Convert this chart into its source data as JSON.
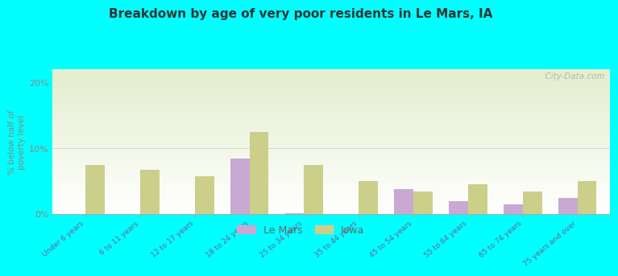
{
  "title": "Breakdown by age of very poor residents in Le Mars, IA",
  "categories": [
    "Under 6 years",
    "6 to 11 years",
    "12 to 17 years",
    "18 to 24 years",
    "25 to 34 years",
    "35 to 44 years",
    "45 to 54 years",
    "55 to 64 years",
    "65 to 74 years",
    "75 years and over"
  ],
  "le_mars_values": [
    0,
    0,
    0,
    8.5,
    0.2,
    0,
    3.8,
    2.0,
    1.5,
    2.5
  ],
  "iowa_values_aligned": [
    7.5,
    6.8,
    5.8,
    12.5,
    7.5,
    5.0,
    3.5,
    4.5,
    3.5,
    5.0
  ],
  "ylim": [
    0,
    22
  ],
  "yticks": [
    0,
    10,
    20
  ],
  "ytick_labels": [
    "0%",
    "10%",
    "20%"
  ],
  "ylabel": "% below half of\npoverty level",
  "le_mars_color": "#c9a8d4",
  "iowa_color": "#cccf8a",
  "outer_bg": "#00ffff",
  "bar_width": 0.35,
  "watermark": "  City-Data.com"
}
